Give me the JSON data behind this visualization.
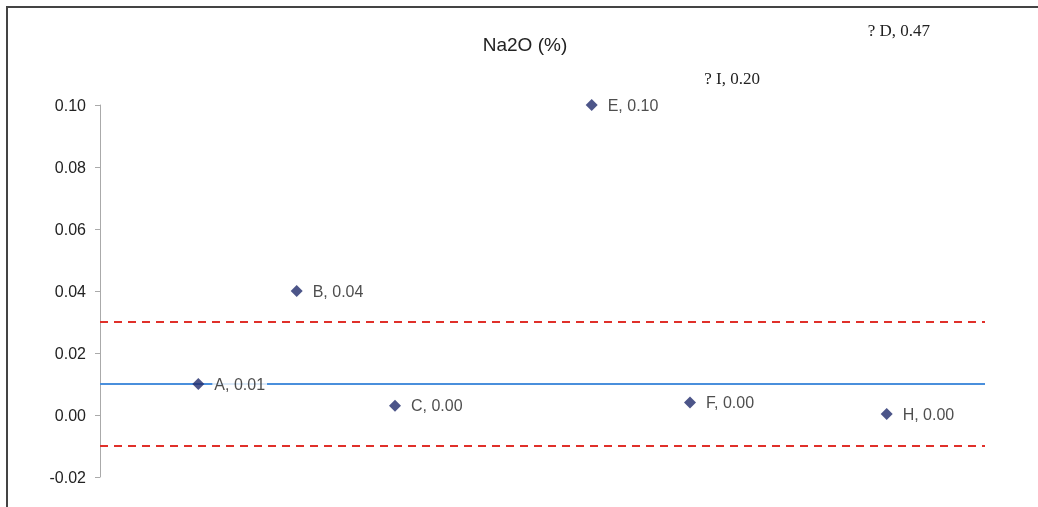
{
  "chart_data": {
    "type": "scatter",
    "title": "Na2O (%)",
    "categories": [
      null,
      null,
      null,
      null,
      null,
      null,
      null,
      null,
      null,
      null
    ],
    "series": [
      {
        "color": "#1f2a6b",
        "values": [
          null,
          0.01,
          0.04,
          0.003,
          null,
          0.1,
          0.004,
          null,
          0.0003,
          null
        ],
        "value_labels": [
          null,
          "A, 0.01",
          "B, 0.04",
          "C, 0.00",
          null,
          "E, 0.10",
          "F, 0.00",
          null,
          "H, 0.00",
          null
        ]
      }
    ],
    "ylim": [
      -0.02,
      0.1
    ],
    "yticks": [
      {
        "value": -0.02,
        "label": "-0.02"
      },
      {
        "value": 0,
        "label": "0.00"
      },
      {
        "value": 0.02,
        "label": "0.02"
      },
      {
        "value": 0.04,
        "label": "0.04"
      },
      {
        "value": 0.06,
        "label": "0.06"
      },
      {
        "value": 0.08,
        "label": "0.08"
      },
      {
        "value": 0.1,
        "label": "0.10"
      }
    ],
    "ref_lines": [
      {
        "axis": "y",
        "value": 0.01,
        "color": "#4a8fdc",
        "line_style": "solid"
      },
      {
        "axis": "y",
        "value": 0.03,
        "color": "#e0302a",
        "line_style": "dashed"
      },
      {
        "axis": "y",
        "value": -0.01,
        "color": "#e0302a",
        "line_style": "dashed"
      }
    ],
    "annotations": [
      "? D, 0.47",
      "? I, 0.20"
    ],
    "marker": "diamond",
    "grid": false
  }
}
